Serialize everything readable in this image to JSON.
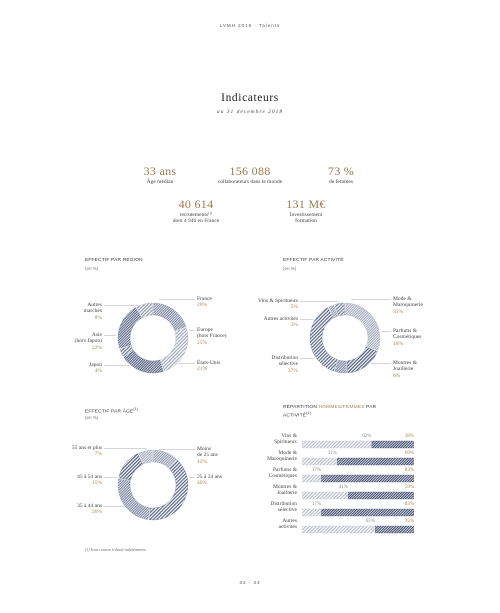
{
  "header": {
    "title": "LVMH 2018 · Talents"
  },
  "title": "Indicateurs",
  "subtitle": "au 31 décembre 2018",
  "kpis": [
    {
      "value": "33 ans",
      "label": "Âge médian"
    },
    {
      "value": "156 088",
      "label": "collaborateurs dans le monde"
    },
    {
      "value": "73 %",
      "label": "de femmes"
    },
    {
      "value": "40 614",
      "label": "recrutements⁽¹⁾\ndont 4 946 en France"
    },
    {
      "value": "131 M€",
      "label": "Investissement\nformation"
    }
  ],
  "chart_data": [
    {
      "type": "pie",
      "title": "EFFECTIF PAR RÉGION",
      "subtitle": "(en %)",
      "categories": [
        "France",
        "Europe\n(hors France)",
        "États-Unis",
        "Japon",
        "Asie\n(hors Japon)",
        "Autres\nmarchés"
      ],
      "values": [
        20,
        25,
        21,
        4,
        22,
        8
      ],
      "value_labels": [
        "20%",
        "25%",
        "21%",
        "4%",
        "22%",
        "8%"
      ],
      "colors": [
        "#7a849f",
        "#a3aabd",
        "#4d5a7c",
        "#6f7a96",
        "#5c6787",
        "#9099b0"
      ]
    },
    {
      "type": "pie",
      "title": "EFFECTIF PAR ACTIVITÉ",
      "subtitle": "(en %)",
      "categories": [
        "Mode &\nMaroquinerie",
        "Parfums &\nCosmétiques",
        "Montres &\nJoaillerie",
        "Distribution\nsélective",
        "Autres activités",
        "Vins & Spiritueux"
      ],
      "values": [
        31,
        18,
        6,
        37,
        3,
        5
      ],
      "value_labels": [
        "31%",
        "18%",
        "6%",
        "37%",
        "3%",
        "5%"
      ],
      "colors": [
        "#a3aabd",
        "#4d5a7c",
        "#7a849f",
        "#5c6787",
        "#9099b0",
        "#6f7a96"
      ]
    },
    {
      "type": "pie",
      "title": "EFFECTIF PAR ÂGE",
      "title_note": "(1)",
      "subtitle": "(en %)",
      "categories": [
        "Moins\nde 25 ans",
        "25 à 34 ans",
        "35 à 44 ans",
        "45 à 54 ans",
        "55 ans et plus"
      ],
      "values": [
        12,
        40,
        26,
        15,
        7
      ],
      "value_labels": [
        "12%",
        "40%",
        "26%",
        "15%",
        "7%"
      ],
      "colors": [
        "#9099b0",
        "#5c6787",
        "#7a849f",
        "#4d5a7c",
        "#a3aabd"
      ]
    },
    {
      "type": "bar",
      "orientation": "horizontal",
      "stacked": true,
      "title": "RÉPARTITION",
      "title_highlight": "HOMMES/FEMMES",
      "title_end": "PAR ACTIVITÉ",
      "title_note": "(1)",
      "categories": [
        "Vins &\nSpiritueux",
        "Mode &\nMaroquinerie",
        "Parfums &\nCosmétiques",
        "Montres &\nJoaillerie",
        "Distribution\nsélective",
        "Autres\nactivités"
      ],
      "xlim": [
        0,
        100
      ],
      "series": [
        {
          "color": "#b9bfcc",
          "values": [
            62,
            31,
            17,
            41,
            17,
            65
          ],
          "value_labels": [
            "62%",
            "31%",
            "17%",
            "41%",
            "17%",
            "65%"
          ]
        },
        {
          "color": "#3f4b6e",
          "values": [
            38,
            69,
            83,
            59,
            83,
            35
          ],
          "value_labels": [
            "38%",
            "69%",
            "83%",
            "59%",
            "83%",
            "35%"
          ]
        }
      ]
    }
  ],
  "footnote": "(1) Sous contrat à durée indéterminée.",
  "page_number": "32 - 33"
}
